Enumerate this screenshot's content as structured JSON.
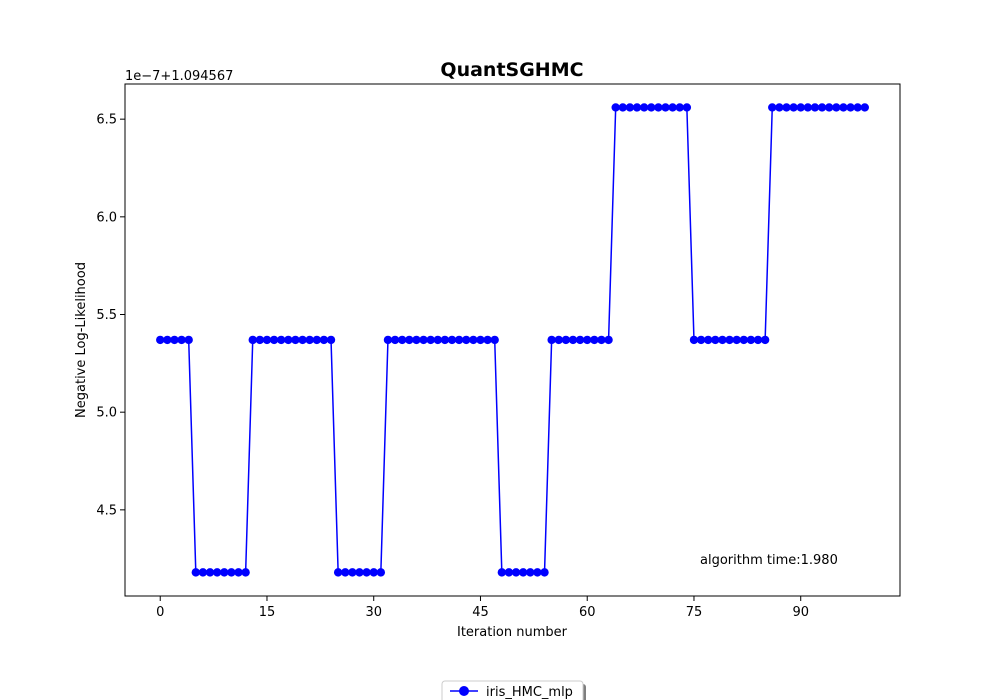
{
  "chart_data": {
    "type": "line",
    "title": "QuantSGHMC",
    "xlabel": "Iteration number",
    "ylabel": "Negative Log-Likelihood",
    "offset_label": "1e−7+1.094567",
    "annotation": "algorithm time:1.980",
    "xlim": [
      -4.95,
      103.95
    ],
    "ylim": [
      4.059,
      6.68
    ],
    "x_ticks": [
      0,
      15,
      30,
      45,
      60,
      75,
      90
    ],
    "x_tick_labels": [
      "0",
      "15",
      "30",
      "45",
      "60",
      "75",
      "90"
    ],
    "y_ticks": [
      4.5,
      5.0,
      5.5,
      6.0,
      6.5
    ],
    "y_tick_labels": [
      "4.5",
      "5.0",
      "5.5",
      "6.0",
      "6.5"
    ],
    "grid": false,
    "legend_position": "bottom-center",
    "series": [
      {
        "name": "iris_HMC_mlp",
        "color": "#0000ff",
        "marker": "circle",
        "x": [
          0,
          1,
          2,
          3,
          4,
          5,
          6,
          7,
          8,
          9,
          10,
          11,
          12,
          13,
          14,
          15,
          16,
          17,
          18,
          19,
          20,
          21,
          22,
          23,
          24,
          25,
          26,
          27,
          28,
          29,
          30,
          31,
          32,
          33,
          34,
          35,
          36,
          37,
          38,
          39,
          40,
          41,
          42,
          43,
          44,
          45,
          46,
          47,
          48,
          49,
          50,
          51,
          52,
          53,
          54,
          55,
          56,
          57,
          58,
          59,
          60,
          61,
          62,
          63,
          64,
          65,
          66,
          67,
          68,
          69,
          70,
          71,
          72,
          73,
          74,
          75,
          76,
          77,
          78,
          79,
          80,
          81,
          82,
          83,
          84,
          85,
          86,
          87,
          88,
          89,
          90,
          91,
          92,
          93,
          94,
          95,
          96,
          97,
          98,
          99
        ],
        "values": [
          5.37,
          5.37,
          5.37,
          5.37,
          5.37,
          4.18,
          4.18,
          4.18,
          4.18,
          4.18,
          4.18,
          4.18,
          4.18,
          5.37,
          5.37,
          5.37,
          5.37,
          5.37,
          5.37,
          5.37,
          5.37,
          5.37,
          5.37,
          5.37,
          5.37,
          4.18,
          4.18,
          4.18,
          4.18,
          4.18,
          4.18,
          4.18,
          5.37,
          5.37,
          5.37,
          5.37,
          5.37,
          5.37,
          5.37,
          5.37,
          5.37,
          5.37,
          5.37,
          5.37,
          5.37,
          5.37,
          5.37,
          5.37,
          4.18,
          4.18,
          4.18,
          4.18,
          4.18,
          4.18,
          4.18,
          5.37,
          5.37,
          5.37,
          5.37,
          5.37,
          5.37,
          5.37,
          5.37,
          5.37,
          6.56,
          6.56,
          6.56,
          6.56,
          6.56,
          6.56,
          6.56,
          6.56,
          6.56,
          6.56,
          6.56,
          5.37,
          5.37,
          5.37,
          5.37,
          5.37,
          5.37,
          5.37,
          5.37,
          5.37,
          5.37,
          5.37,
          6.56,
          6.56,
          6.56,
          6.56,
          6.56,
          6.56,
          6.56,
          6.56,
          6.56,
          6.56,
          6.56,
          6.56,
          6.56,
          6.56
        ]
      }
    ]
  }
}
